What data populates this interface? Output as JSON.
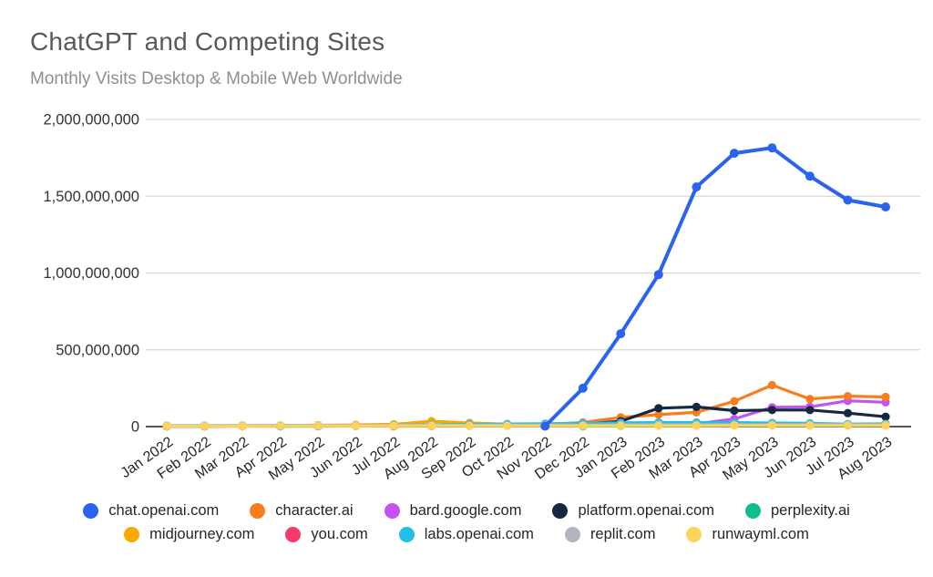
{
  "chart_data": {
    "type": "line",
    "title": "ChatGPT and Competing Sites",
    "subtitle": "Monthly Visits Desktop & Mobile Web Worldwide",
    "xlabel": "",
    "ylabel": "",
    "ylim": [
      0,
      2000000000
    ],
    "yticks": [
      0,
      500000000,
      1000000000,
      1500000000,
      2000000000
    ],
    "ytick_labels": [
      "0",
      "500,000,000",
      "1,000,000,000",
      "1,500,000,000",
      "2,000,000,000"
    ],
    "grid": true,
    "legend_position": "bottom",
    "x": [
      "Jan 2022",
      "Feb 2022",
      "Mar 2022",
      "Apr 2022",
      "May 2022",
      "Jun 2022",
      "Jul 2022",
      "Aug 2022",
      "Sep 2022",
      "Oct 2022",
      "Nov 2022",
      "Dec 2022",
      "Jan 2023",
      "Feb 2023",
      "Mar 2023",
      "Apr 2023",
      "May 2023",
      "Jun 2023",
      "Jul 2023",
      "Aug 2023"
    ],
    "series": [
      {
        "name": "chat.openai.com",
        "color": "#2b63f1",
        "values": [
          null,
          null,
          null,
          null,
          null,
          null,
          null,
          null,
          null,
          null,
          3000000,
          250000000,
          605000000,
          990000000,
          1560000000,
          1780000000,
          1815000000,
          1630000000,
          1475000000,
          1430000000
        ]
      },
      {
        "name": "character.ai",
        "color": "#f97d1d",
        "values": [
          null,
          null,
          null,
          null,
          null,
          null,
          2000000,
          4000000,
          7000000,
          11000000,
          15000000,
          27000000,
          60000000,
          78000000,
          93000000,
          165000000,
          270000000,
          180000000,
          198000000,
          193000000
        ]
      },
      {
        "name": "bard.google.com",
        "color": "#c353f2",
        "values": [
          null,
          null,
          null,
          null,
          null,
          null,
          null,
          null,
          null,
          null,
          null,
          null,
          null,
          null,
          18000000,
          50000000,
          126000000,
          128000000,
          168000000,
          158000000
        ]
      },
      {
        "name": "platform.openai.com",
        "color": "#14283f",
        "values": [
          2000000,
          2000000,
          3000000,
          3000000,
          3000000,
          4000000,
          4000000,
          5000000,
          6000000,
          7000000,
          9000000,
          16000000,
          35000000,
          120000000,
          128000000,
          104000000,
          108000000,
          108000000,
          88000000,
          64000000
        ]
      },
      {
        "name": "perplexity.ai",
        "color": "#10be8c",
        "values": [
          null,
          null,
          null,
          null,
          null,
          null,
          null,
          null,
          null,
          null,
          null,
          2000000,
          5000000,
          8000000,
          10000000,
          12000000,
          12000000,
          14000000,
          16000000,
          18000000
        ]
      },
      {
        "name": "midjourney.com",
        "color": "#f8a801",
        "values": [
          6000000,
          6000000,
          7000000,
          8000000,
          9000000,
          11000000,
          15000000,
          35000000,
          24000000,
          16000000,
          14000000,
          14000000,
          15000000,
          16000000,
          18000000,
          17000000,
          16000000,
          15000000,
          12000000,
          10000000
        ]
      },
      {
        "name": "you.com",
        "color": "#f73a69",
        "values": [
          4000000,
          4000000,
          4000000,
          5000000,
          5000000,
          5000000,
          6000000,
          6000000,
          7000000,
          7000000,
          8000000,
          9000000,
          10000000,
          10000000,
          10000000,
          9000000,
          9000000,
          8000000,
          8000000,
          8000000
        ]
      },
      {
        "name": "labs.openai.com",
        "color": "#22c0e8",
        "values": [
          null,
          null,
          null,
          2000000,
          4000000,
          6000000,
          9000000,
          12000000,
          15000000,
          17000000,
          19000000,
          22000000,
          25000000,
          27000000,
          27000000,
          26000000,
          24000000,
          22000000,
          16000000,
          14000000
        ]
      },
      {
        "name": "replit.com",
        "color": "#b0b7c0",
        "values": [
          7000000,
          7000000,
          7000000,
          8000000,
          8000000,
          8000000,
          9000000,
          9000000,
          9000000,
          10000000,
          10000000,
          10000000,
          11000000,
          12000000,
          12000000,
          12000000,
          13000000,
          13000000,
          12000000,
          12000000
        ]
      },
      {
        "name": "runwayml.com",
        "color": "#fcd45c",
        "values": [
          3000000,
          3000000,
          3000000,
          4000000,
          4000000,
          4000000,
          4000000,
          5000000,
          5000000,
          5000000,
          5000000,
          5000000,
          6000000,
          6000000,
          6000000,
          7000000,
          7000000,
          7000000,
          7000000,
          8000000
        ]
      }
    ]
  }
}
